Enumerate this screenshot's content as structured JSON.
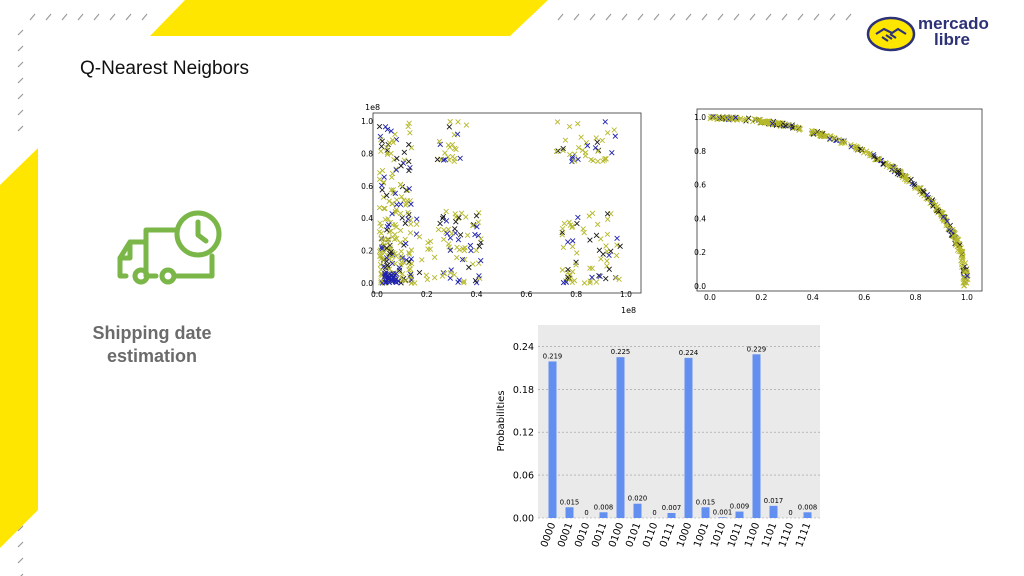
{
  "slide": {
    "title": "Q-Nearest Neigbors",
    "caption": "Shipping date estimation",
    "brand_colors": {
      "yellow": "#ffe600",
      "navy": "#2d3277",
      "icon_green": "#7ab648"
    }
  },
  "logo": {
    "line1": "mercado",
    "line2": "libre",
    "icon": "handshake-icon"
  },
  "truck_icon": "delivery-truck-clock-icon",
  "chart_data": [
    {
      "type": "scatter",
      "title": "",
      "x_offset_text": "1e8",
      "y_offset_text": "1e8",
      "xlim": [
        0,
        1.0
      ],
      "ylim": [
        0,
        1.0
      ],
      "x_ticks": [
        "0.0",
        "0.2",
        "0.4",
        "0.6",
        "0.8",
        "1.0"
      ],
      "y_ticks": [
        "0.0",
        "0.2",
        "0.4",
        "0.6",
        "0.8",
        "1.0"
      ],
      "marker": "x",
      "series_colors": [
        "#b5b82a",
        "#1a1a1a",
        "#1f22b0"
      ]
    },
    {
      "type": "scatter",
      "title": "",
      "xlim": [
        0,
        1.0
      ],
      "ylim": [
        0,
        1.0
      ],
      "x_ticks": [
        "0.0",
        "0.2",
        "0.4",
        "0.6",
        "0.8",
        "1.0"
      ],
      "y_ticks": [
        "0.0",
        "0.2",
        "0.4",
        "0.6",
        "0.8",
        "1.0"
      ],
      "marker": "x",
      "shape": "quarter-circle arc",
      "series_colors": [
        "#b5b82a",
        "#1a1a1a",
        "#1f22b0"
      ]
    },
    {
      "type": "bar",
      "title": "",
      "ylabel": "Probabilities",
      "xlabel": "",
      "categories": [
        "0000",
        "0001",
        "0010",
        "0011",
        "0100",
        "0101",
        "0110",
        "0111",
        "1000",
        "1001",
        "1010",
        "1011",
        "1100",
        "1101",
        "1110",
        "1111"
      ],
      "values": [
        0.219,
        0.015,
        0,
        0.008,
        0.225,
        0.02,
        0,
        0.007,
        0.224,
        0.015,
        0.001,
        0.009,
        0.229,
        0.017,
        0,
        0.008
      ],
      "value_labels": [
        "0.219",
        "0.015",
        "0",
        "0.008",
        "0.225",
        "0.020",
        "0",
        "0.007",
        "0.224",
        "0.015",
        "0.001",
        "0.009",
        "0.229",
        "0.017",
        "0",
        "0.008"
      ],
      "y_ticks": [
        "0.00",
        "0.06",
        "0.12",
        "0.18",
        "0.24"
      ],
      "ylim": [
        0,
        0.27
      ],
      "bar_color": "#6390f0",
      "background": "#eaeaea",
      "grid": true
    }
  ]
}
